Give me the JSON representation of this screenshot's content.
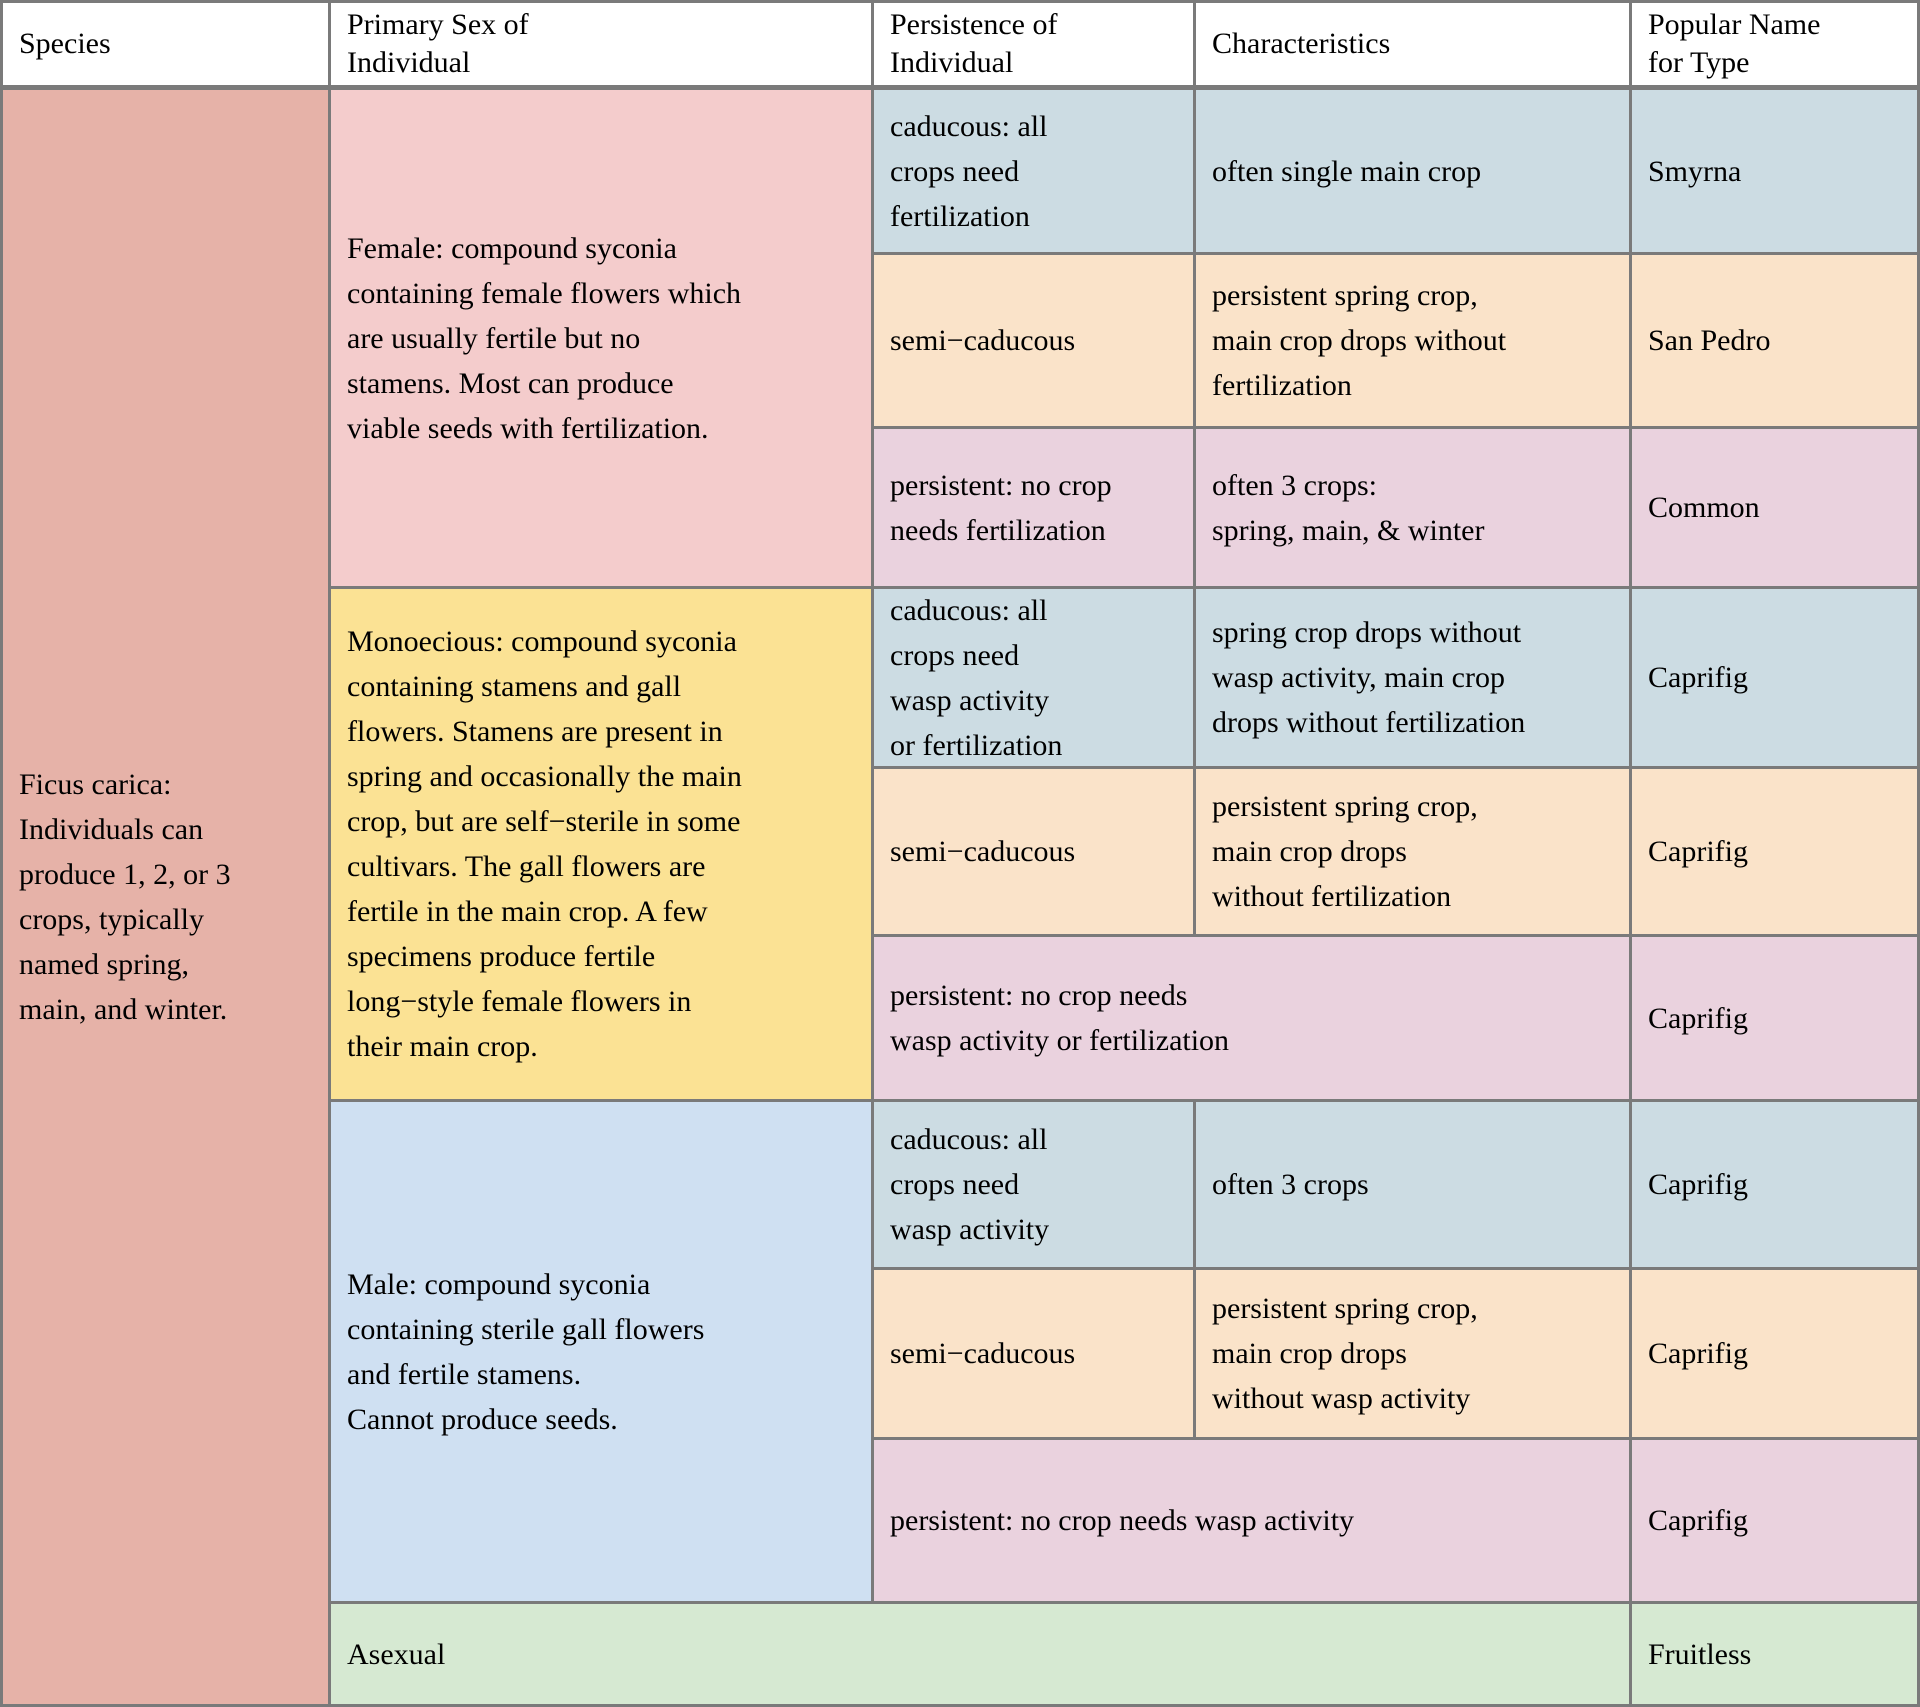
{
  "chart_data": {
    "type": "table",
    "columns": [
      "Species",
      "Primary Sex of\nIndividual",
      "Persistence of\nIndividual",
      "Characteristics",
      "Popular Name\nfor Type"
    ],
    "species": "Ficus carica:\nIndividuals can\nproduce 1, 2, or 3\ncrops, typically\nnamed spring,\nmain, and winter.",
    "sex_groups": [
      {
        "sex": "Female",
        "description": "Female: compound syconia\ncontaining female flowers which\nare usually fertile but no\nstamens. Most can produce\nviable seeds with fertilization."
      },
      {
        "sex": "Monoecious",
        "description": "Monoecious: compound syconia\ncontaining stamens and gall\nflowers. Stamens are present in\nspring and occasionally the main\ncrop, but are self−sterile in some\ncultivars. The gall flowers are\nfertile in the main crop. A few\nspecimens produce fertile\nlong−style female flowers in\ntheir main crop."
      },
      {
        "sex": "Male",
        "description": "Male: compound syconia\ncontaining sterile gall flowers\nand fertile stamens.\nCannot produce seeds."
      }
    ],
    "rows": [
      {
        "group": "female",
        "persistence": "caducous: all\ncrops need\nfertilization",
        "characteristics": "often single main crop",
        "popular_name": "Smyrna"
      },
      {
        "group": "female",
        "persistence": "semi−caducous",
        "characteristics": "persistent spring crop,\nmain crop drops without\nfertilization",
        "popular_name": "San Pedro"
      },
      {
        "group": "female",
        "persistence": "persistent: no crop\nneeds fertilization",
        "characteristics": "often 3 crops:\nspring, main, & winter",
        "popular_name": "Common"
      },
      {
        "group": "monoecious",
        "persistence": "caducous: all\ncrops need\nwasp activity\nor fertilization",
        "characteristics": "spring crop drops without\nwasp activity, main crop\ndrops without fertilization",
        "popular_name": "Caprifig"
      },
      {
        "group": "monoecious",
        "persistence": "semi−caducous",
        "characteristics": "persistent spring crop,\nmain crop drops\nwithout fertilization",
        "popular_name": "Caprifig"
      },
      {
        "group": "monoecious",
        "persistence": "persistent: no crop needs\nwasp activity or fertilization",
        "characteristics": "",
        "popular_name": "Caprifig"
      },
      {
        "group": "male",
        "persistence": "caducous: all\ncrops need\nwasp activity",
        "characteristics": "often 3 crops",
        "popular_name": "Caprifig"
      },
      {
        "group": "male",
        "persistence": "semi−caducous",
        "characteristics": "persistent spring crop,\nmain crop drops\nwithout wasp activity",
        "popular_name": "Caprifig"
      },
      {
        "group": "male",
        "persistence": "persistent: no crop needs wasp activity",
        "characteristics": "",
        "popular_name": "Caprifig"
      }
    ],
    "asexual": {
      "label": "Asexual",
      "popular_name": "Fruitless"
    },
    "palette": {
      "grid_line": "#7a7a7a",
      "header_bg": "#ffffff",
      "species_bg": "#e6b2a8",
      "female_bg": "#f4cccc",
      "monoecious_bg": "#fbe294",
      "male_bg": "#cfe0f2",
      "caducous_row_bg": "#ccdce3",
      "semi_caducous_row_bg": "#fae3c9",
      "persistent_row_bg": "#ead2de",
      "asexual_row_bg": "#d6e9d2",
      "text": "#000000"
    }
  }
}
